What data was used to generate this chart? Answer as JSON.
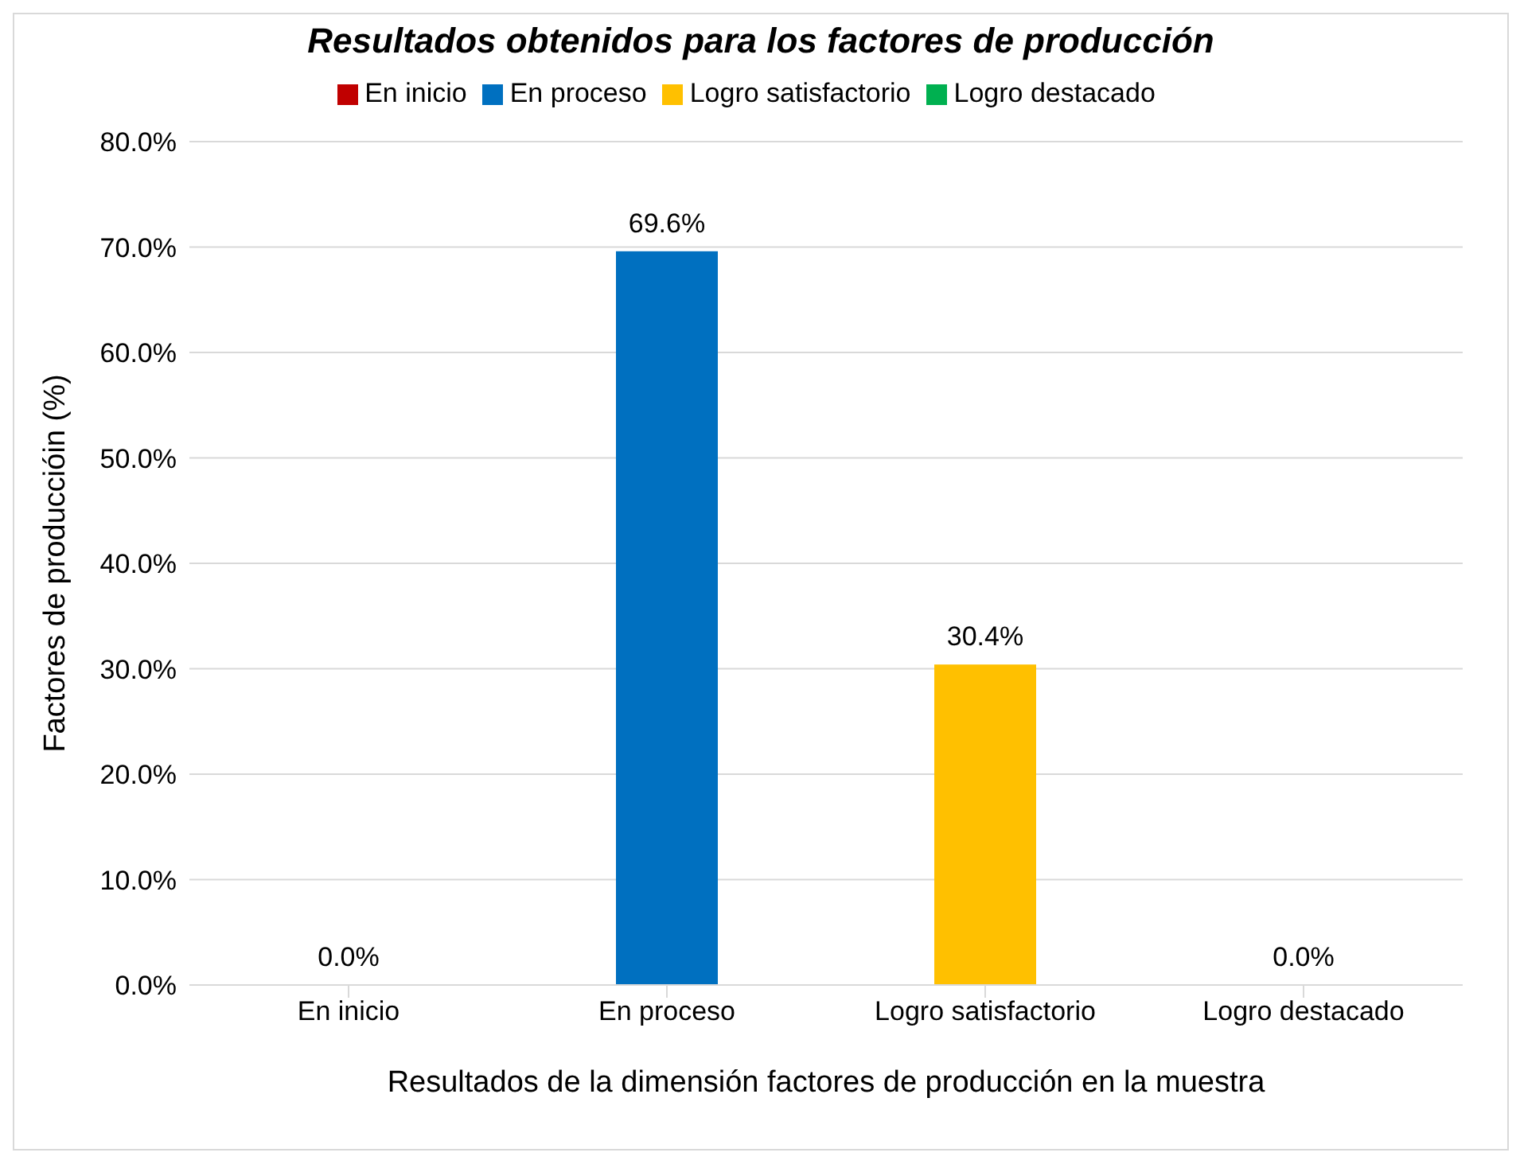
{
  "chart_data": {
    "type": "bar",
    "title": "Resultados obtenidos para los factores de  producción",
    "xlabel": "Resultados de la dimensión factores  de producción  en la muestra",
    "ylabel": "Factores  de produccióin  (%)",
    "categories": [
      "En inicio",
      "En proceso",
      "Logro satisfactorio",
      "Logro destacado"
    ],
    "stacked": true,
    "series": [
      {
        "name": "En inicio",
        "color": "#c00000",
        "values": [
          0,
          null,
          null,
          null
        ],
        "value_labels": [
          "0.0%",
          null,
          null,
          null
        ]
      },
      {
        "name": "En proceso",
        "color": "#0070c0",
        "values": [
          null,
          69.6,
          null,
          null
        ],
        "value_labels": [
          null,
          "69.6%",
          null,
          null
        ]
      },
      {
        "name": "Logro satisfactorio",
        "color": "#ffc000",
        "values": [
          null,
          null,
          30.4,
          null
        ],
        "value_labels": [
          null,
          null,
          "30.4%",
          null
        ]
      },
      {
        "name": "Logro destacado",
        "color": "#00b050",
        "values": [
          null,
          null,
          null,
          0
        ],
        "value_labels": [
          null,
          null,
          null,
          "0.0%"
        ]
      }
    ],
    "ylim": [
      0,
      80
    ],
    "yticks": [
      {
        "value": 0,
        "label": "0.0%"
      },
      {
        "value": 10,
        "label": "10.0%"
      },
      {
        "value": 20,
        "label": "20.0%"
      },
      {
        "value": 30,
        "label": "30.0%"
      },
      {
        "value": 40,
        "label": "40.0%"
      },
      {
        "value": 50,
        "label": "50.0%"
      },
      {
        "value": 60,
        "label": "60.0%"
      },
      {
        "value": 70,
        "label": "70.0%"
      },
      {
        "value": 80,
        "label": "80.0%"
      }
    ],
    "grid": "y",
    "legend": "top"
  }
}
